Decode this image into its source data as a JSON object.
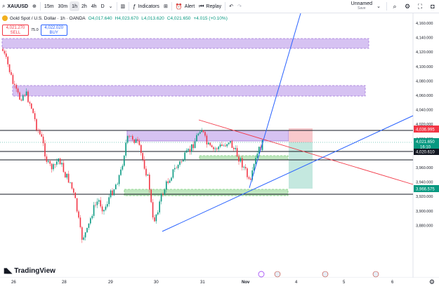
{
  "toolbar": {
    "symbol": "XAUUSD",
    "intervals": [
      "15m",
      "30m",
      "1h",
      "2h",
      "4h",
      "D"
    ],
    "active_interval": "1h",
    "indicators_label": "Indicators",
    "alert_label": "Alert",
    "replay_label": "Replay",
    "layout_name": "Unnamed",
    "layout_status": "Save"
  },
  "legend": {
    "title": "Gold Spot / U.S. Dollar · 1h · OANDA",
    "open": "O4,017.640",
    "high": "H4,023.670",
    "low": "L4,013.620",
    "close": "C4,021.650",
    "change": "+4.015 (+0.10%)"
  },
  "trade": {
    "sell_price": "4,021.270",
    "sell_label": "SELL",
    "spread": "75.0",
    "buy_price": "4,022.020",
    "buy_label": "BUY"
  },
  "price_axis": {
    "ticks": [
      "4,160.000",
      "4,140.000",
      "4,120.000",
      "4,100.000",
      "4,080.000",
      "4,060.000",
      "4,040.000",
      "4,020.000",
      "4,000.000",
      "3,980.000",
      "3,960.000",
      "3,940.000",
      "3,920.000",
      "3,900.000",
      "3,880.000"
    ],
    "labels": {
      "stop": "4,036.995",
      "current_price": "4,021.650",
      "countdown": "16:10",
      "level": "4,020.610",
      "target": "3,966.575"
    }
  },
  "time_axis": {
    "labels": [
      "26",
      "28",
      "29",
      "30",
      "31",
      "Nov",
      "4",
      "5",
      "6"
    ]
  },
  "branding": {
    "name": "TradingView"
  },
  "colors": {
    "up": "#089981",
    "down": "#f23645",
    "zone": "#d1b8f0",
    "zone_border": "#a37ad8",
    "demand": "#a8e0a8",
    "blue": "#2962ff",
    "red": "#f23645",
    "stop_box": "#f8c9cc",
    "target_box": "#c4e8df"
  }
}
